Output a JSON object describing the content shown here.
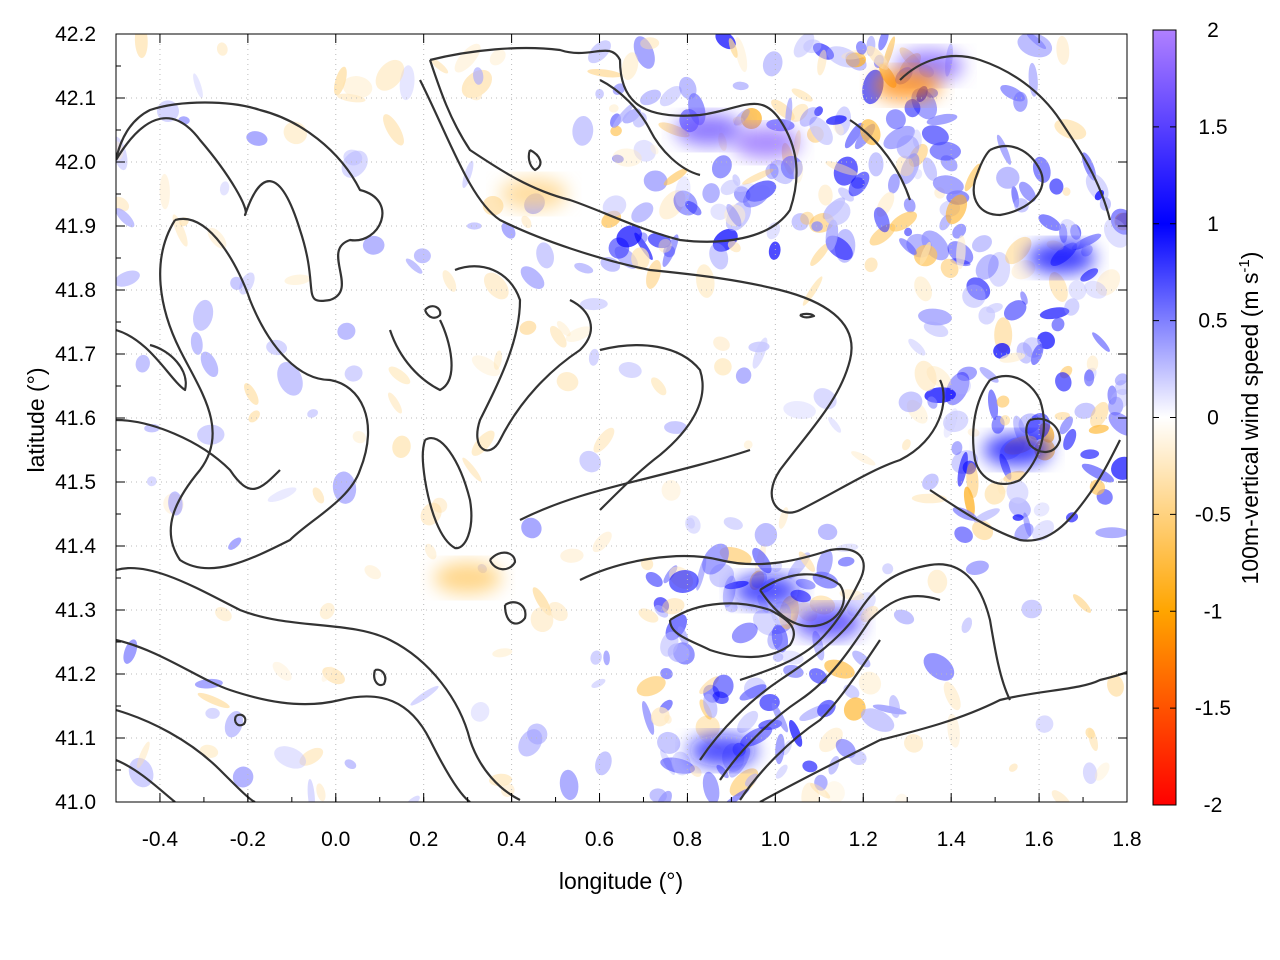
{
  "chart_data": {
    "type": "heatmap",
    "title": "",
    "xlabel": "longitude (°)",
    "ylabel": "latitude (°)",
    "colorbar_label": "100m-vertical wind speed (m s",
    "colorbar_label_sup": "-1",
    "colorbar_label_end": ")",
    "xlim": [
      -0.5,
      1.8
    ],
    "ylim": [
      41.0,
      42.2
    ],
    "zlim": [
      -2,
      2
    ],
    "x_ticks": [
      "-0.4",
      "-0.2",
      "0.0",
      "0.2",
      "0.4",
      "0.6",
      "0.8",
      "1.0",
      "1.2",
      "1.4",
      "1.6",
      "1.8"
    ],
    "y_ticks": [
      "41.0",
      "41.1",
      "41.2",
      "41.3",
      "41.4",
      "41.5",
      "41.6",
      "41.7",
      "41.8",
      "41.9",
      "42.0",
      "42.1",
      "42.2"
    ],
    "colorbar_ticks": [
      "-2",
      "-1.5",
      "-1",
      "-0.5",
      "0",
      "0.5",
      "1",
      "1.5",
      "2"
    ],
    "colorscale": [
      {
        "value": -2,
        "color": "#ff0000"
      },
      {
        "value": -1,
        "color": "#ffa500"
      },
      {
        "value": 0,
        "color": "#ffffff"
      },
      {
        "value": 1,
        "color": "#0000ff"
      },
      {
        "value": 2,
        "color": "#b080ff"
      }
    ],
    "grid": true,
    "contours": "terrain elevation isolines (black)",
    "features": [
      {
        "lon": 0.85,
        "lat": 42.05,
        "value": 1.6
      },
      {
        "lon": 0.98,
        "lat": 42.03,
        "value": 1.8
      },
      {
        "lon": 1.35,
        "lat": 42.15,
        "value": 1.7
      },
      {
        "lon": 1.12,
        "lat": 41.28,
        "value": 1.3
      },
      {
        "lon": 0.98,
        "lat": 41.33,
        "value": 1.1
      },
      {
        "lon": 1.55,
        "lat": 41.55,
        "value": 1.0
      },
      {
        "lon": 1.65,
        "lat": 41.85,
        "value": 1.0
      },
      {
        "lon": 0.88,
        "lat": 41.08,
        "value": 1.1
      },
      {
        "lon": 1.3,
        "lat": 42.12,
        "value": -1.2
      },
      {
        "lon": 0.45,
        "lat": 41.95,
        "value": -0.5
      },
      {
        "lon": 0.3,
        "lat": 41.35,
        "value": -0.6
      }
    ]
  }
}
